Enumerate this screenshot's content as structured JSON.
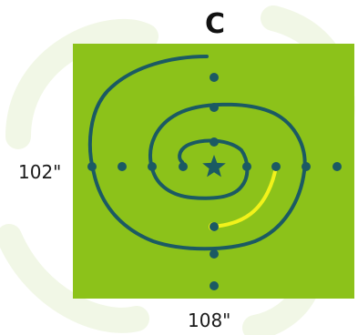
{
  "title": "C",
  "dimensions": {
    "height": "102\"",
    "width": "108\""
  },
  "colors": {
    "field": "#8cc21a",
    "spiral": "#1b5a63",
    "marker": "#1b5a63",
    "highlight": "#f2f21a",
    "watermark": "#eef5e0"
  },
  "icons": {
    "center": "star-icon"
  }
}
